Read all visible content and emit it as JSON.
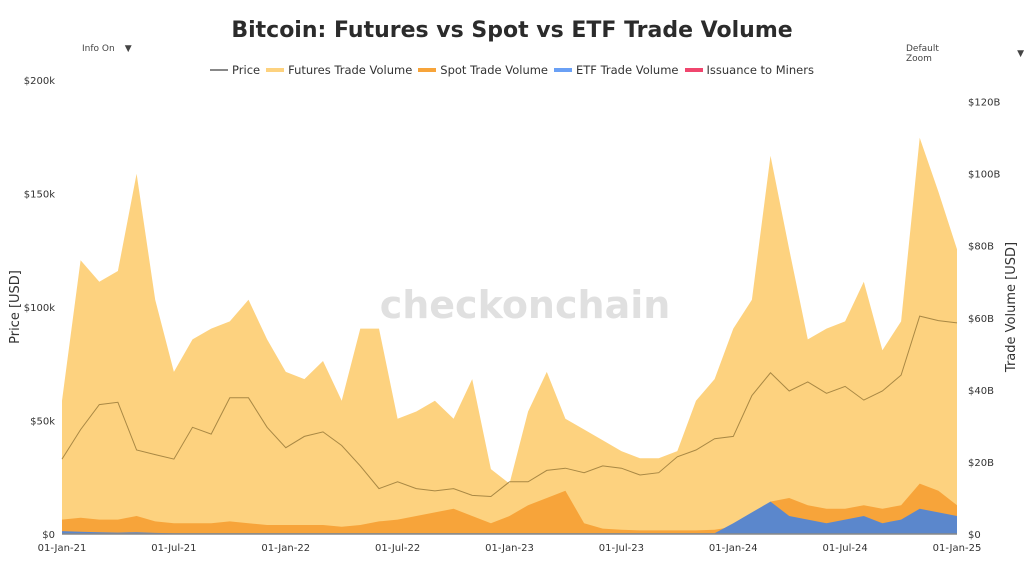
{
  "controls": {
    "info": "Info On",
    "zoom": "Default Zoom",
    "arrow": "▼"
  },
  "watermark": "checkonchain",
  "chart_data": {
    "type": "area",
    "title": "Bitcoin: Futures vs Spot vs ETF Trade Volume",
    "ylabel": "Price [USD]",
    "y2label": "Trade Volume [USD]",
    "ylim": [
      0,
      200000
    ],
    "y2lim_billions": [
      0,
      126
    ],
    "yticks": [
      "$0",
      "$50k",
      "$100k",
      "$150k",
      "$200k"
    ],
    "y2ticks": [
      "$0",
      "$20B",
      "$40B",
      "$60B",
      "$80B",
      "$100B",
      "$120B"
    ],
    "xticks": [
      "01-Jan-21",
      "01-Jul-21",
      "01-Jan-22",
      "01-Jul-22",
      "01-Jan-23",
      "01-Jul-23",
      "01-Jan-24",
      "01-Jul-24",
      "01-Jan-25"
    ],
    "x_start": "2021-01",
    "x_end": "2025-01",
    "x_step": "monthly",
    "legend_position": "top",
    "series": [
      {
        "name": "Price",
        "axis": "left",
        "color": "#9a7b3a",
        "values": [
          33000,
          46000,
          57000,
          58000,
          37000,
          35000,
          33000,
          47000,
          44000,
          60000,
          60000,
          47000,
          38000,
          43000,
          45000,
          39000,
          30000,
          20000,
          23000,
          20000,
          19000,
          20000,
          17000,
          16500,
          23000,
          23000,
          28000,
          29000,
          27000,
          30000,
          29000,
          26000,
          27000,
          34000,
          37000,
          42000,
          43000,
          61000,
          71000,
          63000,
          67000,
          62000,
          65000,
          59000,
          63000,
          70000,
          96000,
          94000,
          93000
        ]
      },
      {
        "name": "Futures Trade Volume",
        "axis": "right",
        "unit": "B USD",
        "color": "#fdd27f",
        "values": [
          37,
          76,
          70,
          73,
          100,
          65,
          45,
          54,
          57,
          59,
          65,
          54,
          45,
          43,
          48,
          37,
          57,
          57,
          32,
          34,
          37,
          32,
          43,
          18,
          14,
          34,
          45,
          32,
          29,
          26,
          23,
          21,
          21,
          23,
          37,
          43,
          57,
          65,
          105,
          79,
          54,
          57,
          59,
          70,
          51,
          59,
          110,
          95,
          79
        ]
      },
      {
        "name": "Spot Trade Volume",
        "axis": "right",
        "unit": "B USD",
        "color": "#f7a43a",
        "values": [
          4,
          4.5,
          4,
          4,
          5,
          3.5,
          3,
          3,
          3,
          3.5,
          3,
          2.5,
          2.5,
          2.5,
          2.5,
          2,
          2.5,
          3.5,
          4,
          5,
          6,
          7,
          5,
          3,
          5,
          8,
          10,
          12,
          3,
          1.5,
          1.2,
          1,
          1,
          1,
          1,
          1.2,
          2,
          5,
          9,
          10,
          8,
          7,
          7,
          8,
          7,
          8,
          14,
          12,
          8
        ]
      },
      {
        "name": "ETF Trade Volume",
        "axis": "right",
        "unit": "B USD",
        "color": "#5b87cc",
        "values": [
          0.8,
          0.6,
          0.5,
          0.4,
          0.5,
          0.3,
          0.2,
          0.2,
          0.2,
          0.2,
          0.2,
          0.2,
          0.2,
          0.2,
          0.2,
          0.2,
          0.2,
          0.2,
          0.2,
          0.2,
          0.2,
          0.2,
          0.2,
          0.2,
          0.2,
          0.2,
          0.2,
          0.2,
          0.2,
          0.2,
          0.2,
          0.2,
          0.2,
          0.2,
          0.2,
          0.2,
          3,
          6,
          9,
          5,
          4,
          3,
          4,
          5,
          3,
          4,
          7,
          6,
          5
        ]
      },
      {
        "name": "Issuance to Miners",
        "axis": "right",
        "unit": "B USD",
        "color": "#f0466e",
        "values": [
          0.1,
          0.1,
          0.1,
          0.1,
          0.1,
          0.1,
          0.1,
          0.1,
          0.1,
          0.1,
          0.1,
          0.1,
          0.1,
          0.1,
          0.1,
          0.1,
          0.1,
          0.1,
          0.1,
          0.1,
          0.1,
          0.1,
          0.1,
          0.1,
          0.1,
          0.1,
          0.1,
          0.1,
          0.1,
          0.1,
          0.1,
          0.1,
          0.1,
          0.1,
          0.1,
          0.1,
          0.1,
          0.1,
          0.1,
          0.1,
          0.1,
          0.1,
          0.1,
          0.1,
          0.1,
          0.1,
          0.1,
          0.1,
          0.1
        ]
      }
    ]
  }
}
